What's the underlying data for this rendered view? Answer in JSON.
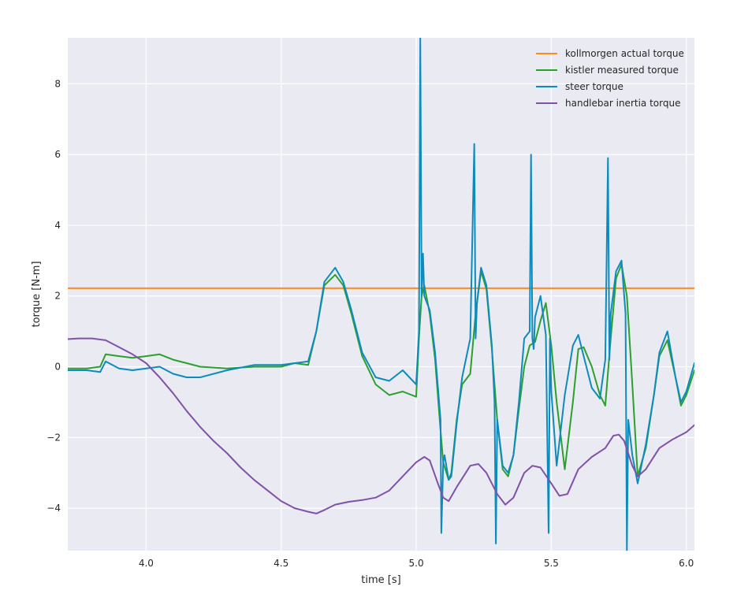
{
  "chart_data": {
    "type": "line",
    "title": "",
    "xlabel": "time [s]",
    "ylabel": "torque [N-m]",
    "xlim": [
      3.71,
      6.03
    ],
    "ylim": [
      -5.2,
      9.3
    ],
    "grid": true,
    "legend_position": "top-right",
    "x_ticks": [
      {
        "value": 4.0,
        "label": "4.0"
      },
      {
        "value": 4.5,
        "label": "4.5"
      },
      {
        "value": 5.0,
        "label": "5.0"
      },
      {
        "value": 5.5,
        "label": "5.5"
      },
      {
        "value": 6.0,
        "label": "6.0"
      }
    ],
    "y_ticks": [
      {
        "value": -4,
        "label": "−4"
      },
      {
        "value": -2,
        "label": "−2"
      },
      {
        "value": 0,
        "label": "0"
      },
      {
        "value": 2,
        "label": "2"
      },
      {
        "value": 4,
        "label": "4"
      },
      {
        "value": 6,
        "label": "6"
      },
      {
        "value": 8,
        "label": "8"
      }
    ],
    "series": [
      {
        "name": "kollmorgen actual torque",
        "color": "#ff8c1a",
        "x": [
          3.71,
          4.0,
          4.5,
          5.0,
          5.5,
          6.03
        ],
        "y": [
          2.22,
          2.22,
          2.22,
          2.22,
          2.22,
          2.22
        ]
      },
      {
        "name": "kistler measured torque",
        "color": "#2ca02c",
        "x": [
          3.71,
          3.78,
          3.83,
          3.85,
          3.9,
          3.95,
          4.0,
          4.05,
          4.1,
          4.15,
          4.2,
          4.3,
          4.4,
          4.5,
          4.55,
          4.6,
          4.63,
          4.66,
          4.7,
          4.73,
          4.76,
          4.8,
          4.85,
          4.9,
          4.95,
          5.0,
          5.01,
          5.02,
          5.03,
          5.05,
          5.07,
          5.09,
          5.1,
          5.12,
          5.13,
          5.15,
          5.17,
          5.2,
          5.22,
          5.24,
          5.26,
          5.28,
          5.3,
          5.32,
          5.34,
          5.36,
          5.38,
          5.4,
          5.42,
          5.44,
          5.46,
          5.48,
          5.5,
          5.52,
          5.55,
          5.58,
          5.6,
          5.62,
          5.65,
          5.68,
          5.7,
          5.72,
          5.74,
          5.76,
          5.78,
          5.8,
          5.82,
          5.85,
          5.88,
          5.9,
          5.93,
          5.96,
          5.98,
          6.0,
          6.03
        ],
        "y": [
          -0.05,
          -0.05,
          0.0,
          0.35,
          0.3,
          0.25,
          0.3,
          0.35,
          0.2,
          0.1,
          0.0,
          -0.05,
          0.0,
          0.0,
          0.1,
          0.05,
          1.0,
          2.3,
          2.6,
          2.3,
          1.5,
          0.3,
          -0.5,
          -0.8,
          -0.7,
          -0.85,
          0.8,
          2.0,
          2.3,
          1.5,
          0.2,
          -1.8,
          -2.7,
          -3.2,
          -3.0,
          -1.5,
          -0.5,
          -0.2,
          1.5,
          2.7,
          2.2,
          0.5,
          -1.5,
          -2.9,
          -3.1,
          -2.5,
          -1.2,
          0.0,
          0.6,
          0.7,
          1.3,
          1.8,
          0.6,
          -1.0,
          -2.9,
          -1.0,
          0.5,
          0.55,
          0.0,
          -0.8,
          -1.1,
          0.8,
          2.5,
          2.9,
          2.0,
          -0.5,
          -3.1,
          -2.3,
          -0.8,
          0.3,
          0.75,
          -0.3,
          -1.1,
          -0.8,
          -0.1
        ]
      },
      {
        "name": "steer torque",
        "color": "#0e8bbd",
        "x": [
          3.71,
          3.78,
          3.83,
          3.85,
          3.9,
          3.95,
          4.0,
          4.05,
          4.1,
          4.15,
          4.2,
          4.3,
          4.4,
          4.5,
          4.55,
          4.6,
          4.63,
          4.66,
          4.7,
          4.73,
          4.76,
          4.8,
          4.85,
          4.9,
          4.95,
          5.0,
          5.01,
          5.015,
          5.02,
          5.025,
          5.03,
          5.05,
          5.07,
          5.09,
          5.093,
          5.1,
          5.105,
          5.12,
          5.13,
          5.15,
          5.17,
          5.2,
          5.215,
          5.22,
          5.225,
          5.24,
          5.26,
          5.28,
          5.29,
          5.295,
          5.3,
          5.32,
          5.34,
          5.36,
          5.38,
          5.4,
          5.42,
          5.425,
          5.43,
          5.435,
          5.44,
          5.46,
          5.48,
          5.49,
          5.495,
          5.5,
          5.52,
          5.55,
          5.58,
          5.6,
          5.62,
          5.65,
          5.68,
          5.7,
          5.71,
          5.715,
          5.72,
          5.74,
          5.76,
          5.775,
          5.78,
          5.785,
          5.8,
          5.82,
          5.85,
          5.88,
          5.9,
          5.93,
          5.96,
          5.98,
          6.0,
          6.03
        ],
        "y": [
          -0.1,
          -0.1,
          -0.15,
          0.15,
          -0.05,
          -0.1,
          -0.05,
          0.0,
          -0.2,
          -0.3,
          -0.3,
          -0.1,
          0.05,
          0.05,
          0.1,
          0.15,
          1.0,
          2.4,
          2.8,
          2.4,
          1.6,
          0.4,
          -0.3,
          -0.4,
          -0.1,
          -0.5,
          1.0,
          9.3,
          2.0,
          3.2,
          2.0,
          1.6,
          0.4,
          -1.5,
          -4.7,
          -2.7,
          -2.5,
          -3.2,
          -3.1,
          -1.6,
          -0.3,
          0.8,
          6.3,
          0.8,
          1.8,
          2.8,
          2.3,
          0.6,
          -1.0,
          -5.0,
          -1.5,
          -2.8,
          -3.0,
          -2.5,
          -1.0,
          0.8,
          1.0,
          6.0,
          0.8,
          0.5,
          1.4,
          2.0,
          0.9,
          -4.7,
          0.8,
          -0.7,
          -2.8,
          -0.8,
          0.6,
          0.9,
          0.3,
          -0.6,
          -0.9,
          0.2,
          5.9,
          0.2,
          1.5,
          2.7,
          3.0,
          1.5,
          -5.2,
          -1.5,
          -2.5,
          -3.3,
          -2.2,
          -0.8,
          0.4,
          1.0,
          -0.3,
          -1.0,
          -0.7,
          0.1
        ]
      },
      {
        "name": "handlebar inertia torque",
        "color": "#7f52a7",
        "x": [
          3.71,
          3.75,
          3.8,
          3.85,
          3.9,
          3.95,
          4.0,
          4.05,
          4.1,
          4.15,
          4.2,
          4.25,
          4.3,
          4.35,
          4.4,
          4.45,
          4.5,
          4.55,
          4.6,
          4.63,
          4.66,
          4.7,
          4.75,
          4.8,
          4.85,
          4.9,
          4.95,
          5.0,
          5.03,
          5.05,
          5.08,
          5.1,
          5.12,
          5.15,
          5.2,
          5.23,
          5.26,
          5.3,
          5.33,
          5.36,
          5.4,
          5.43,
          5.46,
          5.5,
          5.53,
          5.56,
          5.6,
          5.65,
          5.7,
          5.73,
          5.75,
          5.77,
          5.8,
          5.82,
          5.85,
          5.9,
          5.95,
          6.0,
          6.03
        ],
        "y": [
          0.78,
          0.8,
          0.8,
          0.75,
          0.55,
          0.35,
          0.1,
          -0.3,
          -0.75,
          -1.25,
          -1.7,
          -2.1,
          -2.45,
          -2.85,
          -3.2,
          -3.5,
          -3.8,
          -4.0,
          -4.1,
          -4.15,
          -4.05,
          -3.9,
          -3.82,
          -3.77,
          -3.7,
          -3.5,
          -3.1,
          -2.7,
          -2.55,
          -2.65,
          -3.3,
          -3.7,
          -3.8,
          -3.4,
          -2.8,
          -2.75,
          -3.0,
          -3.6,
          -3.9,
          -3.7,
          -3.0,
          -2.8,
          -2.85,
          -3.3,
          -3.65,
          -3.6,
          -2.9,
          -2.55,
          -2.3,
          -1.95,
          -1.92,
          -2.1,
          -2.8,
          -3.1,
          -2.9,
          -2.3,
          -2.05,
          -1.85,
          -1.65
        ]
      }
    ]
  }
}
